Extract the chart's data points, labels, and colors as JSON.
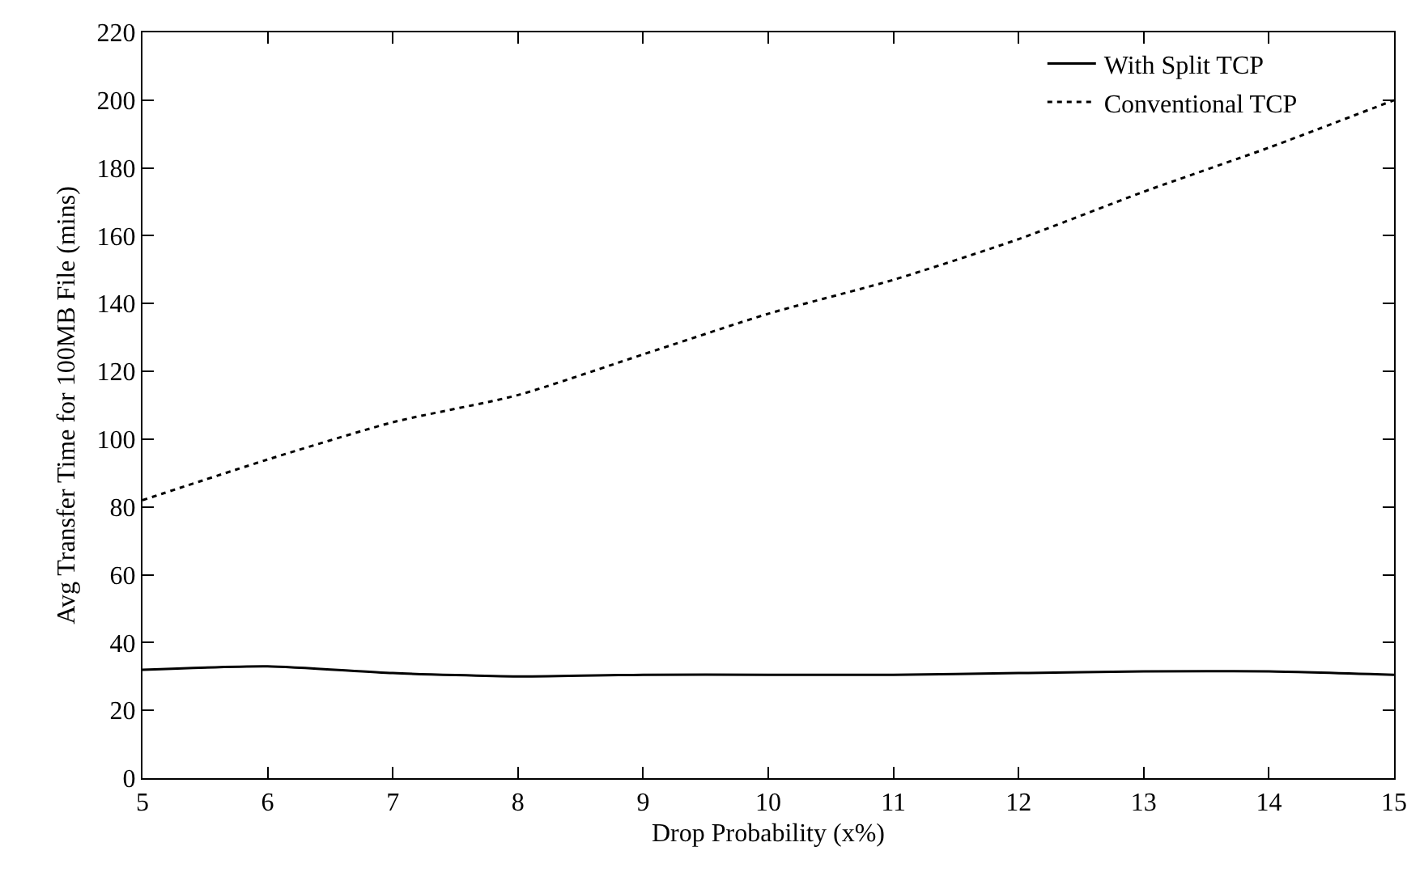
{
  "chart_data": {
    "type": "line",
    "xlabel": "Drop Probability (x%)",
    "ylabel": "Avg Transfer Time for 100MB File (mins)",
    "x": [
      5,
      6,
      7,
      8,
      9,
      10,
      11,
      12,
      13,
      14,
      15
    ],
    "series": [
      {
        "name": "With Split TCP",
        "color": "#000000",
        "line_style": "solid",
        "values": [
          32,
          33,
          31,
          30,
          30.5,
          30.5,
          30.5,
          31,
          31.5,
          31.5,
          30.5
        ]
      },
      {
        "name": "Conventional TCP",
        "color": "#000000",
        "line_style": "dotted",
        "values": [
          82,
          94,
          105,
          113,
          125,
          137,
          147,
          159,
          173,
          186,
          200
        ]
      }
    ],
    "xlim": [
      5,
      15
    ],
    "xticks": [
      5,
      6,
      7,
      8,
      9,
      10,
      11,
      12,
      13,
      14,
      15
    ],
    "ylim": [
      0,
      220
    ],
    "yticks": [
      0,
      20,
      40,
      60,
      80,
      100,
      120,
      140,
      160,
      180,
      200,
      220
    ],
    "grid": false,
    "legend": "top right",
    "marker": "none"
  }
}
